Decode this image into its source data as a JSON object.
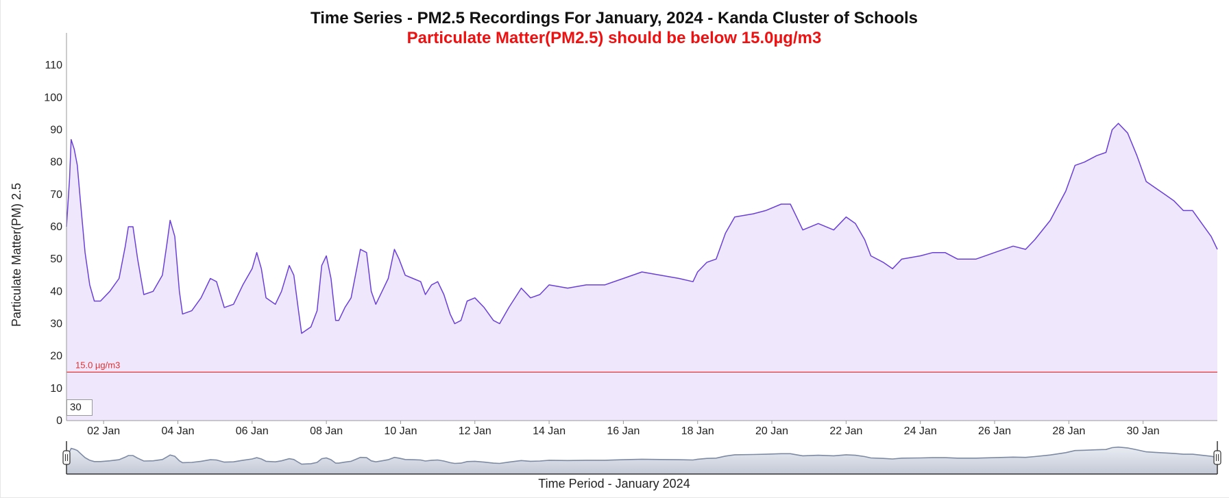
{
  "chart_data": {
    "type": "area",
    "title": "Time Series - PM2.5 Recordings For January, 2024 - Kanda Cluster of Schools",
    "subtitle": "Particulate Matter(PM2.5) should be below 15.0µg/m3",
    "xlabel": "Time Period - January 2024",
    "ylabel": "Particulate Matter(PM) 2.5",
    "x_range": [
      "2024-01-01",
      "2024-02-01"
    ],
    "ylim": [
      0,
      120
    ],
    "y_ticks": [
      0,
      10,
      20,
      30,
      40,
      50,
      60,
      70,
      80,
      90,
      100,
      110
    ],
    "x_tick_labels": [
      "02 Jan",
      "04 Jan",
      "06 Jan",
      "08 Jan",
      "10 Jan",
      "12 Jan",
      "14 Jan",
      "16 Jan",
      "18 Jan",
      "20 Jan",
      "22 Jan",
      "24 Jan",
      "26 Jan",
      "28 Jan",
      "30 Jan"
    ],
    "grid": false,
    "series": [
      {
        "color": "#6a3fd8",
        "fill": "#efe8fd",
        "points": [
          [
            "2024-01-01 00:00",
            60
          ],
          [
            "2024-01-01 02:00",
            75
          ],
          [
            "2024-01-01 03:00",
            87
          ],
          [
            "2024-01-01 05:00",
            84
          ],
          [
            "2024-01-01 07:00",
            79
          ],
          [
            "2024-01-01 09:00",
            68
          ],
          [
            "2024-01-01 12:00",
            52
          ],
          [
            "2024-01-01 15:00",
            42
          ],
          [
            "2024-01-01 18:00",
            37
          ],
          [
            "2024-01-01 22:00",
            37
          ],
          [
            "2024-01-02 04:00",
            40
          ],
          [
            "2024-01-02 10:00",
            44
          ],
          [
            "2024-01-02 14:00",
            54
          ],
          [
            "2024-01-02 16:00",
            60
          ],
          [
            "2024-01-02 19:00",
            60
          ],
          [
            "2024-01-02 22:00",
            50
          ],
          [
            "2024-01-03 02:00",
            39
          ],
          [
            "2024-01-03 08:00",
            40
          ],
          [
            "2024-01-03 14:00",
            45
          ],
          [
            "2024-01-03 17:00",
            55
          ],
          [
            "2024-01-03 19:00",
            62
          ],
          [
            "2024-01-03 22:00",
            57
          ],
          [
            "2024-01-04 01:00",
            40
          ],
          [
            "2024-01-04 03:00",
            33
          ],
          [
            "2024-01-04 09:00",
            34
          ],
          [
            "2024-01-04 15:00",
            38
          ],
          [
            "2024-01-04 21:00",
            44
          ],
          [
            "2024-01-05 01:00",
            43
          ],
          [
            "2024-01-05 06:00",
            35
          ],
          [
            "2024-01-05 12:00",
            36
          ],
          [
            "2024-01-05 18:00",
            42
          ],
          [
            "2024-01-06 00:00",
            47
          ],
          [
            "2024-01-06 03:00",
            52
          ],
          [
            "2024-01-06 06:00",
            47
          ],
          [
            "2024-01-06 09:00",
            38
          ],
          [
            "2024-01-06 12:00",
            37
          ],
          [
            "2024-01-06 15:00",
            36
          ],
          [
            "2024-01-06 19:00",
            40
          ],
          [
            "2024-01-07 00:00",
            48
          ],
          [
            "2024-01-07 03:00",
            45
          ],
          [
            "2024-01-07 06:00",
            34
          ],
          [
            "2024-01-07 08:00",
            27
          ],
          [
            "2024-01-07 14:00",
            29
          ],
          [
            "2024-01-07 18:00",
            34
          ],
          [
            "2024-01-07 21:00",
            48
          ],
          [
            "2024-01-08 00:00",
            51
          ],
          [
            "2024-01-08 03:00",
            44
          ],
          [
            "2024-01-08 06:00",
            31
          ],
          [
            "2024-01-08 08:00",
            31
          ],
          [
            "2024-01-08 12:00",
            35
          ],
          [
            "2024-01-08 16:00",
            38
          ],
          [
            "2024-01-08 20:00",
            48
          ],
          [
            "2024-01-08 22:00",
            53
          ],
          [
            "2024-01-09 02:00",
            52
          ],
          [
            "2024-01-09 05:00",
            40
          ],
          [
            "2024-01-09 08:00",
            36
          ],
          [
            "2024-01-09 12:00",
            40
          ],
          [
            "2024-01-09 16:00",
            44
          ],
          [
            "2024-01-09 20:00",
            53
          ],
          [
            "2024-01-09 23:00",
            50
          ],
          [
            "2024-01-10 03:00",
            45
          ],
          [
            "2024-01-10 08:00",
            44
          ],
          [
            "2024-01-10 13:00",
            43
          ],
          [
            "2024-01-10 16:00",
            39
          ],
          [
            "2024-01-10 20:00",
            42
          ],
          [
            "2024-01-11 00:00",
            43
          ],
          [
            "2024-01-11 04:00",
            39
          ],
          [
            "2024-01-11 08:00",
            33
          ],
          [
            "2024-01-11 11:00",
            30
          ],
          [
            "2024-01-11 15:00",
            31
          ],
          [
            "2024-01-11 19:00",
            37
          ],
          [
            "2024-01-12 00:00",
            38
          ],
          [
            "2024-01-12 06:00",
            35
          ],
          [
            "2024-01-12 12:00",
            31
          ],
          [
            "2024-01-12 16:00",
            30
          ],
          [
            "2024-01-12 22:00",
            35
          ],
          [
            "2024-01-13 06:00",
            41
          ],
          [
            "2024-01-13 12:00",
            38
          ],
          [
            "2024-01-13 18:00",
            39
          ],
          [
            "2024-01-14 00:00",
            42
          ],
          [
            "2024-01-14 12:00",
            41
          ],
          [
            "2024-01-15 00:00",
            42
          ],
          [
            "2024-01-15 12:00",
            42
          ],
          [
            "2024-01-16 00:00",
            44
          ],
          [
            "2024-01-16 12:00",
            46
          ],
          [
            "2024-01-17 00:00",
            45
          ],
          [
            "2024-01-17 12:00",
            44
          ],
          [
            "2024-01-17 21:00",
            43
          ],
          [
            "2024-01-18 00:00",
            46
          ],
          [
            "2024-01-18 06:00",
            49
          ],
          [
            "2024-01-18 12:00",
            50
          ],
          [
            "2024-01-18 18:00",
            58
          ],
          [
            "2024-01-19 00:00",
            63
          ],
          [
            "2024-01-19 12:00",
            64
          ],
          [
            "2024-01-19 20:00",
            65
          ],
          [
            "2024-01-20 06:00",
            67
          ],
          [
            "2024-01-20 12:00",
            67
          ],
          [
            "2024-01-20 16:00",
            63
          ],
          [
            "2024-01-20 20:00",
            59
          ],
          [
            "2024-01-21 06:00",
            61
          ],
          [
            "2024-01-21 16:00",
            59
          ],
          [
            "2024-01-22 00:00",
            63
          ],
          [
            "2024-01-22 06:00",
            61
          ],
          [
            "2024-01-22 12:00",
            56
          ],
          [
            "2024-01-22 16:00",
            51
          ],
          [
            "2024-01-23 00:00",
            49
          ],
          [
            "2024-01-23 06:00",
            47
          ],
          [
            "2024-01-23 12:00",
            50
          ],
          [
            "2024-01-24 00:00",
            51
          ],
          [
            "2024-01-24 08:00",
            52
          ],
          [
            "2024-01-24 16:00",
            52
          ],
          [
            "2024-01-25 00:00",
            50
          ],
          [
            "2024-01-25 12:00",
            50
          ],
          [
            "2024-01-26 00:00",
            52
          ],
          [
            "2024-01-26 12:00",
            54
          ],
          [
            "2024-01-26 20:00",
            53
          ],
          [
            "2024-01-27 02:00",
            56
          ],
          [
            "2024-01-27 12:00",
            62
          ],
          [
            "2024-01-27 22:00",
            71
          ],
          [
            "2024-01-28 04:00",
            79
          ],
          [
            "2024-01-28 10:00",
            80
          ],
          [
            "2024-01-28 18:00",
            82
          ],
          [
            "2024-01-29 00:00",
            83
          ],
          [
            "2024-01-29 04:00",
            90
          ],
          [
            "2024-01-29 08:00",
            92
          ],
          [
            "2024-01-29 14:00",
            89
          ],
          [
            "2024-01-29 20:00",
            82
          ],
          [
            "2024-01-30 02:00",
            74
          ],
          [
            "2024-01-30 08:00",
            72
          ],
          [
            "2024-01-30 14:00",
            70
          ],
          [
            "2024-01-30 20:00",
            68
          ],
          [
            "2024-01-31 02:00",
            65
          ],
          [
            "2024-01-31 08:00",
            65
          ],
          [
            "2024-01-31 14:00",
            61
          ],
          [
            "2024-01-31 20:00",
            57
          ],
          [
            "2024-02-01 00:00",
            53
          ]
        ]
      }
    ],
    "threshold": {
      "value": 15.0,
      "label": "15.0 µg/m3",
      "color": "#e03030"
    },
    "rolling_period": "30",
    "subtitle_color": "#ee1111"
  }
}
